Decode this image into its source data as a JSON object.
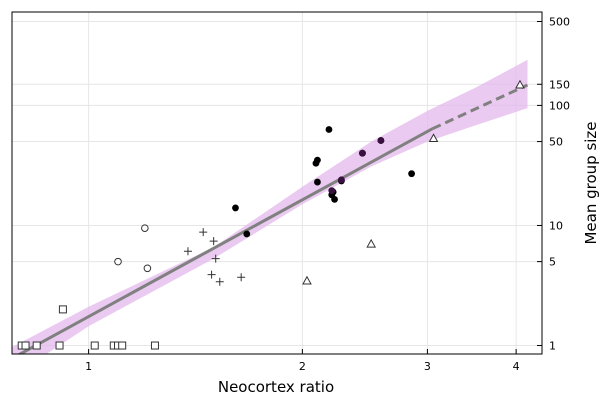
{
  "chart_data": {
    "type": "scatter",
    "x_scale": "log",
    "y_scale": "log",
    "xlabel": "Neocortex ratio",
    "ylabel": "Mean group size",
    "xlim": [
      0.78,
      4.35
    ],
    "ylim": [
      0.85,
      600
    ],
    "x_ticks": [
      1,
      2,
      3,
      4
    ],
    "x_tick_labels": [
      "1",
      "2",
      "3",
      "4"
    ],
    "y_ticks": [
      1,
      5,
      10,
      50,
      100,
      150,
      500
    ],
    "y_tick_labels": [
      "1",
      "5",
      "10",
      "50",
      "100",
      "150",
      "500"
    ],
    "y_axis_side": "right",
    "grid": true,
    "colors": {
      "band": "#e3b4ec",
      "line": "#808080",
      "markers": "#000000",
      "purple_markers": "#3a1040"
    },
    "series": [
      {
        "marker": "square",
        "points": [
          [
            0.805,
            1
          ],
          [
            0.815,
            1
          ],
          [
            0.845,
            1
          ],
          [
            0.91,
            1
          ],
          [
            0.92,
            2
          ],
          [
            1.02,
            1
          ],
          [
            1.085,
            1
          ],
          [
            1.1,
            1
          ],
          [
            1.115,
            1
          ],
          [
            1.24,
            1
          ]
        ]
      },
      {
        "marker": "circle-open",
        "points": [
          [
            1.1,
            5
          ],
          [
            1.2,
            9.5
          ],
          [
            1.21,
            4.4
          ]
        ]
      },
      {
        "marker": "plus",
        "points": [
          [
            1.38,
            6.1
          ],
          [
            1.45,
            8.8
          ],
          [
            1.5,
            7.4
          ],
          [
            1.49,
            3.9
          ],
          [
            1.51,
            5.3
          ],
          [
            1.53,
            3.4
          ],
          [
            1.64,
            3.7
          ]
        ]
      },
      {
        "marker": "circle-filled",
        "points": [
          [
            1.61,
            14
          ],
          [
            1.67,
            8.5
          ],
          [
            2.09,
            33
          ],
          [
            2.1,
            35
          ],
          [
            2.1,
            23
          ],
          [
            2.18,
            63
          ],
          [
            2.2,
            18
          ],
          [
            2.21,
            19
          ],
          [
            2.22,
            16.5
          ],
          [
            2.27,
            23.5
          ],
          [
            2.43,
            40
          ],
          [
            2.58,
            51
          ],
          [
            2.85,
            27
          ]
        ]
      },
      {
        "marker": "circle-filled-purple",
        "points": [
          [
            2.2,
            19.5
          ],
          [
            2.27,
            24
          ],
          [
            2.43,
            40
          ],
          [
            2.58,
            51
          ]
        ]
      },
      {
        "marker": "triangle-open",
        "points": [
          [
            2.03,
            3.45
          ],
          [
            2.5,
            7
          ],
          [
            3.06,
            53
          ],
          [
            4.05,
            148
          ]
        ]
      }
    ],
    "fit": {
      "solid": [
        [
          0.78,
          0.78
        ],
        [
          3.05,
          64
        ]
      ],
      "dashed": [
        [
          3.05,
          64
        ],
        [
          4.15,
          148
        ]
      ],
      "band_upper": [
        [
          0.78,
          0.97
        ],
        [
          1.0,
          2.1
        ],
        [
          1.5,
          6.6
        ],
        [
          2.0,
          21
        ],
        [
          2.5,
          50
        ],
        [
          3.0,
          90
        ],
        [
          3.5,
          140
        ],
        [
          4.15,
          240
        ]
      ],
      "band_lower": [
        [
          0.78,
          0.55
        ],
        [
          1.0,
          1.45
        ],
        [
          1.5,
          5.3
        ],
        [
          2.0,
          15
        ],
        [
          2.5,
          31
        ],
        [
          3.0,
          50
        ],
        [
          3.5,
          68
        ],
        [
          4.15,
          95
        ]
      ]
    }
  }
}
